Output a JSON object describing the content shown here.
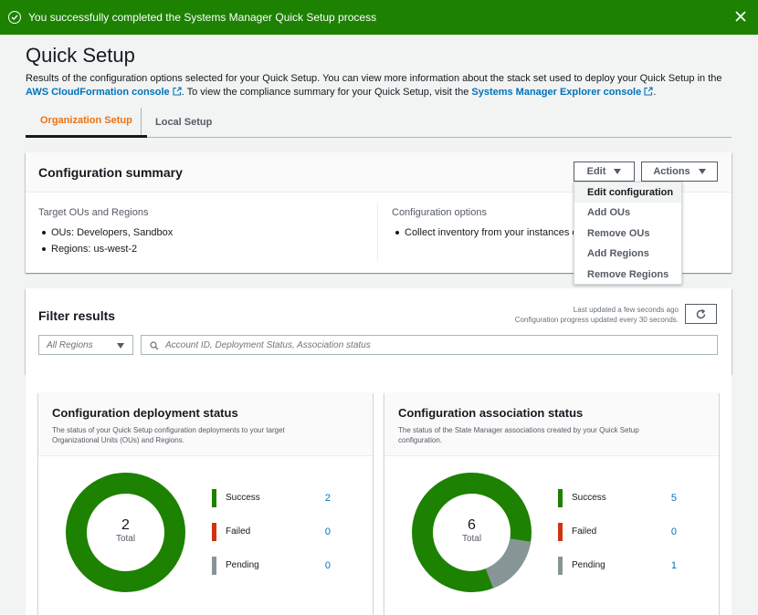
{
  "flash": {
    "message": "You successfully completed the Systems Manager Quick Setup process",
    "color": "#1d8102"
  },
  "page": {
    "title": "Quick Setup",
    "intro_part1": "Results of the configuration options selected for your Quick Setup. You can view more information about the stack set used to deploy your Quick Setup in the ",
    "intro_link1": "AWS CloudFormation console",
    "intro_part2": ". To view the compliance summary for your Quick Setup, visit the ",
    "intro_link2": "Systems Manager Explorer console",
    "intro_part3": "."
  },
  "tabs": [
    {
      "label": "Organization Setup",
      "active": true
    },
    {
      "label": "Local Setup",
      "active": false
    }
  ],
  "summary": {
    "title": "Configuration summary",
    "edit_label": "Edit",
    "actions_label": "Actions",
    "targets_label": "Target OUs and Regions",
    "targets": [
      "OUs: Developers, Sandbox",
      "Regions: us-west-2"
    ],
    "options_label": "Configuration options",
    "options": [
      "Collect inventory from your instances e"
    ]
  },
  "edit_menu": [
    "Edit configuration",
    "Add OUs",
    "Remove OUs",
    "Add Regions",
    "Remove Regions"
  ],
  "filter": {
    "title": "Filter results",
    "last_updated": "Last updated a few seconds ago",
    "progress_note": "Configuration progress updated every 30 seconds.",
    "region_select": "All Regions",
    "search_placeholder": "Account ID, Deployment Status, Association status"
  },
  "deployment": {
    "title": "Configuration deployment status",
    "desc": "The status of your Quick Setup configuration deployments to your target Organizational Units (OUs) and Regions.",
    "total": "2",
    "total_label": "Total",
    "legend": [
      {
        "name": "Success",
        "value": "2",
        "color": "#1d8102"
      },
      {
        "name": "Failed",
        "value": "0",
        "color": "#d13212"
      },
      {
        "name": "Pending",
        "value": "0",
        "color": "#879596"
      }
    ]
  },
  "association": {
    "title": "Configuration association status",
    "desc": "The status of the State Manager associations created by your Quick Setup configuration.",
    "total": "6",
    "total_label": "Total",
    "legend": [
      {
        "name": "Success",
        "value": "5",
        "color": "#1d8102"
      },
      {
        "name": "Failed",
        "value": "0",
        "color": "#d13212"
      },
      {
        "name": "Pending",
        "value": "1",
        "color": "#879596"
      }
    ]
  }
}
